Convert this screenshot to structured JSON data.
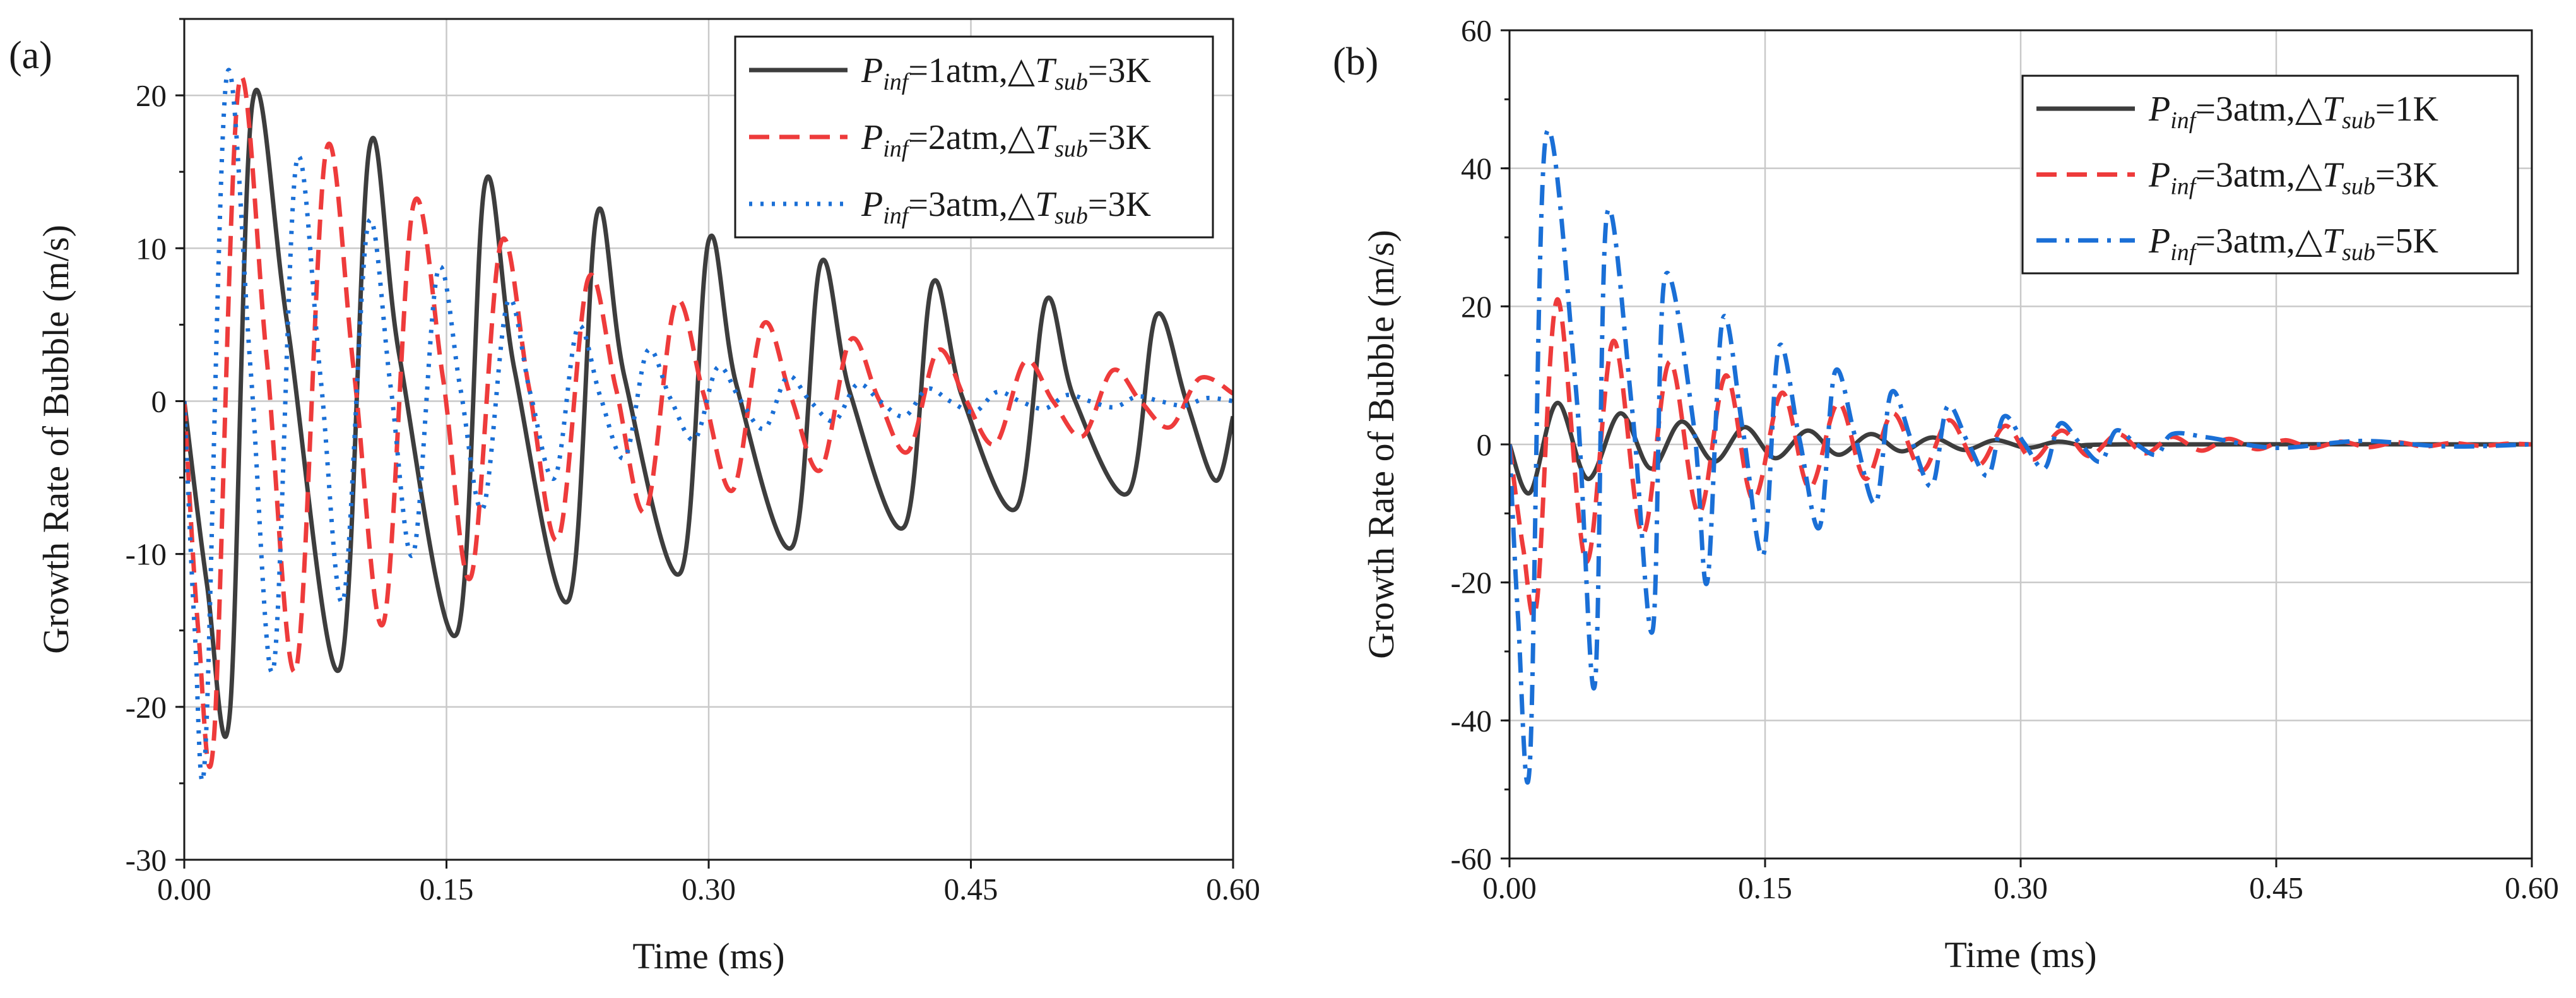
{
  "chart_data": [
    {
      "type": "line",
      "panel_label": "(a)",
      "xlabel": "Time (ms)",
      "ylabel": "Growth Rate of Bubble (m/s)",
      "xlim": [
        0,
        0.6
      ],
      "ylim": [
        -30,
        25
      ],
      "xticks": [
        0,
        0.15,
        0.3,
        0.45,
        0.6
      ],
      "xtick_labels": [
        "0.00",
        "0.15",
        "0.30",
        "0.45",
        "0.60"
      ],
      "yticks": [
        -30,
        -20,
        -10,
        0,
        10,
        20
      ],
      "ytick_labels": [
        "-30",
        "-20",
        "-10",
        "0",
        "10",
        "20"
      ],
      "grid": true,
      "legend_position": "top-right",
      "series": [
        {
          "name": "P_inf=1atm,ΔT_sub=3K",
          "p": "1",
          "dt": "3",
          "color": "#3d3d3d",
          "dash": "solid",
          "x": [
            0,
            0.013,
            0.026,
            0.039,
            0.059,
            0.089,
            0.106,
            0.123,
            0.156,
            0.172,
            0.189,
            0.22,
            0.236,
            0.252,
            0.284,
            0.3,
            0.316,
            0.348,
            0.364,
            0.381,
            0.412,
            0.428,
            0.445,
            0.476,
            0.493,
            0.509,
            0.54,
            0.556,
            0.573,
            0.59,
            0.6
          ],
          "y": [
            0,
            -12,
            -20.5,
            19.5,
            5,
            -17.5,
            16.6,
            3,
            -15.2,
            14.2,
            2,
            -13,
            12.2,
            1.5,
            -11.2,
            10.5,
            1,
            -9.5,
            9,
            0.5,
            -8.2,
            7.7,
            0.3,
            -7,
            6.6,
            0.2,
            -6,
            5.6,
            0.1,
            -5.2,
            -1
          ]
        },
        {
          "name": "P_inf=2atm,ΔT_sub=3K",
          "p": "2",
          "dt": "3",
          "color": "#ee3b3b",
          "dash": "dash",
          "x": [
            0,
            0.008,
            0.017,
            0.031,
            0.047,
            0.064,
            0.081,
            0.097,
            0.114,
            0.131,
            0.148,
            0.164,
            0.181,
            0.197,
            0.214,
            0.231,
            0.247,
            0.264,
            0.281,
            0.297,
            0.314,
            0.331,
            0.347,
            0.364,
            0.381,
            0.397,
            0.414,
            0.431,
            0.447,
            0.464,
            0.481,
            0.497,
            0.514,
            0.531,
            0.547,
            0.564,
            0.581,
            0.6
          ],
          "y": [
            0,
            -15,
            -22,
            20.5,
            3,
            -17.5,
            16.3,
            2,
            -14.5,
            12.8,
            1.5,
            -11.5,
            10.3,
            1,
            -9,
            8,
            0.8,
            -7.2,
            6.4,
            0.5,
            -5.8,
            5,
            0.3,
            -4.5,
            4,
            0.2,
            -3.3,
            3.3,
            0.1,
            -2.8,
            2.6,
            0,
            -2.3,
            2,
            0,
            -1.7,
            1.5,
            0.5
          ]
        },
        {
          "name": "P_inf=3atm,ΔT_sub=3K",
          "p": "3",
          "dt": "3",
          "color": "#1a6fd6",
          "dash": "dot",
          "x": [
            0,
            0.006,
            0.012,
            0.024,
            0.038,
            0.051,
            0.064,
            0.078,
            0.091,
            0.105,
            0.118,
            0.131,
            0.145,
            0.158,
            0.171,
            0.185,
            0.198,
            0.212,
            0.225,
            0.238,
            0.252,
            0.265,
            0.278,
            0.292,
            0.305,
            0.318,
            0.332,
            0.345,
            0.358,
            0.372,
            0.385,
            0.398,
            0.412,
            0.425,
            0.438,
            0.452,
            0.465,
            0.478,
            0.492,
            0.505,
            0.518,
            0.532,
            0.545,
            0.558,
            0.572,
            0.585,
            0.6
          ],
          "y": [
            0,
            -15,
            -23,
            21,
            2,
            -17.5,
            15.5,
            1.5,
            -13,
            11.5,
            1,
            -10,
            8.5,
            0.8,
            -7,
            6.5,
            0.5,
            -5,
            4.8,
            0.3,
            -3.7,
            3.3,
            0.2,
            -2.5,
            2.2,
            0.1,
            -1.8,
            1.6,
            0,
            -1.3,
            1.1,
            0,
            -1,
            0.8,
            0,
            -0.7,
            0.6,
            0,
            -0.5,
            0.4,
            0,
            -0.4,
            0.3,
            0,
            -0.3,
            0.2,
            0
          ]
        }
      ]
    },
    {
      "type": "line",
      "panel_label": "(b)",
      "xlabel": "Time (ms)",
      "ylabel": "Growth Rate of Bubble (m/s)",
      "xlim": [
        0,
        0.6
      ],
      "ylim": [
        -60,
        60
      ],
      "xticks": [
        0,
        0.15,
        0.3,
        0.45,
        0.6
      ],
      "xtick_labels": [
        "0.00",
        "0.15",
        "0.30",
        "0.45",
        "0.60"
      ],
      "yticks": [
        -60,
        -40,
        -20,
        0,
        20,
        40,
        60
      ],
      "ytick_labels": [
        "-60",
        "-40",
        "-20",
        "0",
        "20",
        "40",
        "60"
      ],
      "grid": true,
      "legend_position": "top-right",
      "series": [
        {
          "name": "P_inf=3atm,ΔT_sub=1K",
          "p": "3",
          "dt": "1",
          "color": "#3d3d3d",
          "dash": "solid",
          "x": [
            0,
            0.012,
            0.028,
            0.046,
            0.065,
            0.083,
            0.101,
            0.12,
            0.138,
            0.156,
            0.175,
            0.193,
            0.212,
            0.23,
            0.248,
            0.267,
            0.285,
            0.304,
            0.322,
            0.34,
            0.36,
            0.6
          ],
          "y": [
            0,
            -7,
            6,
            -5,
            4.5,
            -3.5,
            3.3,
            -2.5,
            2.5,
            -2,
            2,
            -1.5,
            1.5,
            -1,
            1,
            -0.8,
            0.6,
            -0.5,
            0.4,
            -0.3,
            0,
            0
          ]
        },
        {
          "name": "P_inf=3atm,ΔT_sub=3K",
          "p": "3",
          "dt": "3",
          "color": "#ee3b3b",
          "dash": "dash",
          "x": [
            0,
            0.008,
            0.016,
            0.028,
            0.045,
            0.061,
            0.078,
            0.094,
            0.111,
            0.127,
            0.143,
            0.16,
            0.176,
            0.193,
            0.209,
            0.225,
            0.242,
            0.258,
            0.275,
            0.291,
            0.307,
            0.324,
            0.34,
            0.357,
            0.373,
            0.389,
            0.406,
            0.422,
            0.439,
            0.455,
            0.471,
            0.488,
            0.504,
            0.521,
            0.537,
            0.553,
            0.57,
            0.586,
            0.6
          ],
          "y": [
            0,
            -15,
            -23,
            21,
            -17,
            15,
            -13,
            12,
            -10,
            10,
            -8,
            7.5,
            -6.3,
            6,
            -5,
            4.5,
            -3.8,
            3.5,
            -3,
            2.7,
            -2.2,
            2,
            -1.7,
            1.5,
            -1.3,
            1.1,
            -0.9,
            0.8,
            -0.7,
            0.6,
            -0.5,
            0.4,
            -0.4,
            0.3,
            -0.3,
            0.2,
            -0.2,
            0.1,
            0
          ]
        },
        {
          "name": "P_inf=3atm,ΔT_sub=5K",
          "p": "3",
          "dt": "5",
          "color": "#1a6fd6",
          "dash": "dashdot",
          "x": [
            0,
            0.005,
            0.012,
            0.021,
            0.039,
            0.05,
            0.057,
            0.072,
            0.084,
            0.091,
            0.108,
            0.116,
            0.125,
            0.137,
            0.149,
            0.158,
            0.17,
            0.182,
            0.191,
            0.203,
            0.215,
            0.224,
            0.236,
            0.248,
            0.257,
            0.269,
            0.281,
            0.29,
            0.302,
            0.314,
            0.323,
            0.335,
            0.347,
            0.356,
            0.368,
            0.38,
            0.389,
            0.41,
            0.45,
            0.5,
            0.55,
            0.6
          ],
          "y": [
            0,
            -25,
            -46,
            44,
            8,
            -35,
            33,
            5,
            -27,
            24,
            3,
            -20,
            18,
            2,
            -16,
            14,
            1,
            -12,
            10.5,
            1,
            -8.5,
            7.5,
            0.5,
            -6,
            5.5,
            0.3,
            -4.5,
            4,
            0.2,
            -3.5,
            3,
            0.1,
            -2.5,
            2,
            0,
            -1.5,
            1.5,
            1,
            -0.5,
            0.5,
            -0.3,
            0
          ]
        }
      ]
    }
  ]
}
